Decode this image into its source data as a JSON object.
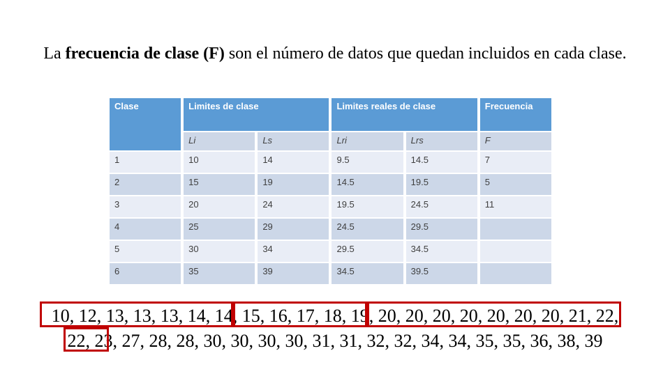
{
  "title": {
    "prefix": "La ",
    "bold": "frecuencia de clase (F)",
    "suffix": " son el número de datos que quedan incluidos en cada clase."
  },
  "table": {
    "header_row1": {
      "clase": "Clase",
      "limites": "Limites de clase",
      "limites_reales": "Limites reales de clase",
      "frecuencia": "Frecuencia"
    },
    "header_row2": [
      "Li",
      "Ls",
      "Lri",
      "Lrs",
      "F"
    ],
    "rows": [
      [
        "1",
        "10",
        "14",
        "9.5",
        "14.5",
        "7"
      ],
      [
        "2",
        "15",
        "19",
        "14.5",
        "19.5",
        "5"
      ],
      [
        "3",
        "20",
        "24",
        "19.5",
        "24.5",
        "11"
      ],
      [
        "4",
        "25",
        "29",
        "24.5",
        "29.5",
        ""
      ],
      [
        "5",
        "30",
        "34",
        "29.5",
        "34.5",
        ""
      ],
      [
        "6",
        "35",
        "39",
        "34.5",
        "39.5",
        ""
      ]
    ]
  },
  "raw_data": {
    "line1": "10, 12, 13, 13, 13, 14, 14, 15, 16, 17, 18, 19, 20, 20, 20, 20, 20, 20, 20, 21, 22,",
    "line2": "22, 23, 27, 28, 28, 30, 30, 30, 30, 31, 31, 32, 32, 34, 34, 35, 35, 36, 38, 39",
    "highlight_groups": [
      {
        "class": 1,
        "values": "10, 12, 13, 13, 13, 14, 14"
      },
      {
        "class": 2,
        "values": "15, 16, 17, 18, 19"
      },
      {
        "class": 3,
        "values": "20, 20, 20, 20, 20, 20, 20, 21, 22, 22, 23"
      }
    ]
  },
  "colors": {
    "header_blue": "#5b9bd5",
    "subheader_band": "#cdd7e7",
    "row_light": "#e9edf6",
    "row_dark": "#ccd7e8",
    "highlight_red": "#c00000"
  }
}
